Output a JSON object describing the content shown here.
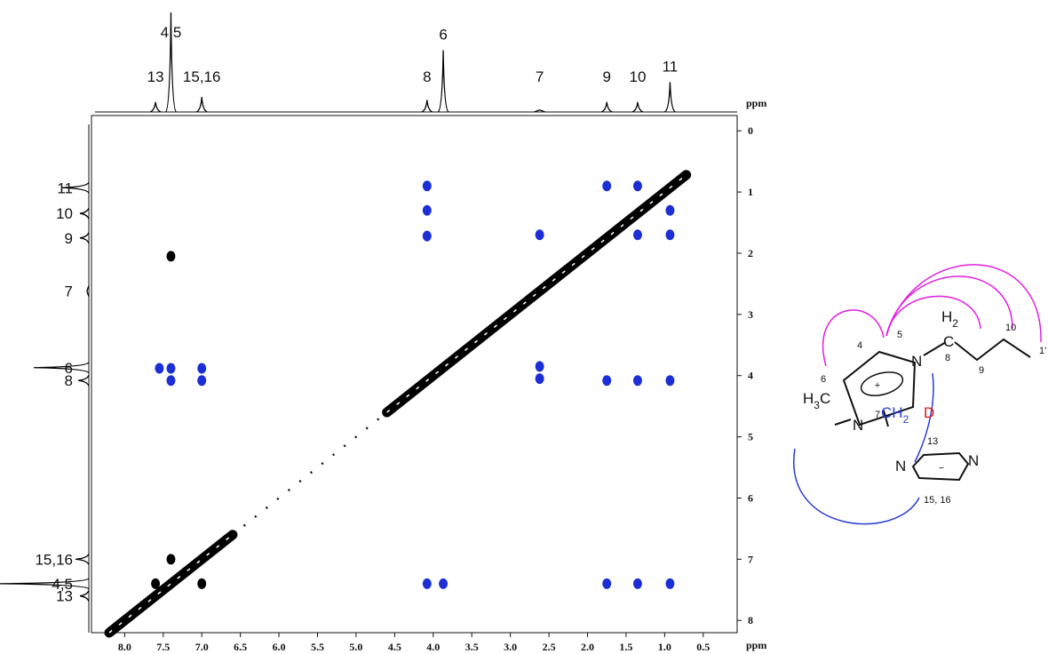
{
  "chart_data": {
    "type": "nmr2d",
    "xlabel": "ppm",
    "ylabel": "ppm",
    "xlim": [
      8.43,
      0.06
    ],
    "ylim": [
      -0.25,
      8.2
    ],
    "xticks": [
      {
        "value": 8,
        "label": "8.0"
      },
      7.5,
      {
        "value": 7,
        "label": "7.0"
      },
      6.5,
      {
        "value": 6,
        "label": "6.0"
      },
      5.5,
      {
        "value": 5,
        "label": "5.0"
      },
      4.5,
      {
        "value": 4,
        "label": "4.0"
      },
      3.5,
      {
        "value": 3,
        "label": "3.0"
      },
      2.5,
      {
        "value": 2,
        "label": "2.0"
      },
      1.5,
      {
        "value": 1,
        "label": "1.0"
      },
      0.5
    ],
    "yticks": [
      0,
      1,
      2,
      3,
      4,
      5,
      6,
      7,
      8
    ],
    "projection": {
      "color": "#000000",
      "x": [
        7.6,
        7.4,
        7.0,
        4.08,
        3.87,
        2.62,
        1.75,
        1.35,
        0.93
      ],
      "values": [
        0.1,
        1.0,
        0.15,
        0.12,
        0.62,
        0.02,
        0.1,
        0.1,
        0.3
      ]
    },
    "peak_labels": [
      {
        "label": "13",
        "x": 7.6
      },
      {
        "label": "4,5",
        "x": 7.4
      },
      {
        "label": "15,16",
        "x": 7.0
      },
      {
        "label": "8",
        "x": 4.08
      },
      {
        "label": "6",
        "x": 3.87
      },
      {
        "label": "7",
        "x": 2.62
      },
      {
        "label": "9",
        "x": 1.75
      },
      {
        "label": "10",
        "x": 1.35
      },
      {
        "label": "11",
        "x": 0.93
      }
    ],
    "diagonal": {
      "color": "#000000",
      "x": [
        8.2,
        6.6,
        null,
        4.6,
        0.72
      ],
      "values": [
        8.2,
        6.6,
        null,
        4.6,
        0.72
      ]
    },
    "series": [
      {
        "color": "#1c2fd6",
        "x": [
          4.08,
          4.08,
          4.08,
          1.75,
          1.35,
          1.35,
          0.93,
          0.93,
          2.62,
          7.55,
          7.4,
          7.0,
          7.4,
          7.0,
          2.62,
          2.62,
          1.75,
          1.35,
          0.93,
          4.08,
          3.87,
          1.75,
          1.35,
          0.93
        ],
        "values": [
          0.9,
          1.3,
          1.72,
          0.9,
          0.9,
          1.7,
          1.3,
          1.7,
          1.7,
          3.88,
          3.88,
          3.88,
          4.08,
          4.08,
          3.85,
          4.05,
          4.08,
          4.08,
          4.08,
          7.4,
          7.4,
          7.4,
          7.4,
          7.4
        ]
      },
      {
        "color": "#000000",
        "x": [
          7.4,
          7.6,
          7.0,
          7.4
        ],
        "values": [
          2.05,
          7.4,
          7.4,
          7.0
        ]
      }
    ]
  },
  "structure": {
    "labels": {
      "h2": "H",
      "h2sub": "2",
      "c8": "C",
      "n8": "8",
      "n9": "9",
      "n10": "10",
      "n11": "1'",
      "n4": "4",
      "n5": "5",
      "nl": "N",
      "nr": "N",
      "n6": "6",
      "h3c": "H",
      "h3sub": "3",
      "c6": "C",
      "n7": "7",
      "ch": "CH",
      "ch2sub": "2",
      "d": "D",
      "plus": "+",
      "n13": "13",
      "an1": "N",
      "an2": "N",
      "minus": "−",
      "n1516": "15, 16"
    }
  }
}
